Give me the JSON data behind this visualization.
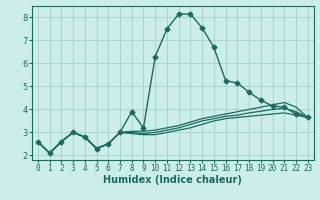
{
  "xlabel": "Humidex (Indice chaleur)",
  "ylabel": "",
  "bg_color": "#cceee8",
  "grid_color": "#aad4ce",
  "line_color": "#1a6b5a",
  "xlim": [
    -0.5,
    23.5
  ],
  "ylim": [
    1.8,
    8.5
  ],
  "xticks": [
    0,
    1,
    2,
    3,
    4,
    5,
    6,
    7,
    8,
    9,
    10,
    11,
    12,
    13,
    14,
    15,
    16,
    17,
    18,
    19,
    20,
    21,
    22,
    23
  ],
  "yticks": [
    2,
    3,
    4,
    5,
    6,
    7,
    8
  ],
  "lines": [
    {
      "x": [
        0,
        1,
        2,
        3,
        4,
        5,
        6,
        7,
        8,
        9,
        10,
        11,
        12,
        13,
        14,
        15,
        16,
        17,
        18,
        19,
        20,
        21,
        22,
        23
      ],
      "y": [
        2.6,
        2.1,
        2.6,
        3.0,
        2.8,
        2.3,
        2.5,
        3.0,
        3.9,
        3.2,
        6.3,
        7.5,
        8.15,
        8.15,
        7.55,
        6.7,
        5.25,
        5.15,
        4.75,
        4.4,
        4.15,
        4.1,
        3.8,
        3.65
      ],
      "style": "-",
      "marker": "D",
      "markersize": 2.5,
      "linewidth": 1.0
    },
    {
      "x": [
        0,
        1,
        2,
        3,
        4,
        5,
        6,
        7,
        8,
        9,
        10,
        11,
        12,
        13,
        14,
        15,
        16,
        17,
        18,
        19,
        20,
        21,
        22,
        23
      ],
      "y": [
        2.6,
        2.1,
        2.6,
        3.0,
        2.8,
        2.3,
        2.5,
        3.0,
        3.05,
        3.05,
        3.1,
        3.2,
        3.3,
        3.45,
        3.6,
        3.7,
        3.8,
        3.9,
        4.0,
        4.1,
        4.2,
        4.3,
        4.1,
        3.65
      ],
      "style": "-",
      "marker": null,
      "markersize": 0,
      "linewidth": 0.9
    },
    {
      "x": [
        0,
        1,
        2,
        3,
        4,
        5,
        6,
        7,
        8,
        9,
        10,
        11,
        12,
        13,
        14,
        15,
        16,
        17,
        18,
        19,
        20,
        21,
        22,
        23
      ],
      "y": [
        2.6,
        2.1,
        2.6,
        3.0,
        2.8,
        2.3,
        2.5,
        3.0,
        3.0,
        2.95,
        3.0,
        3.1,
        3.2,
        3.35,
        3.5,
        3.6,
        3.7,
        3.75,
        3.85,
        3.92,
        4.0,
        4.05,
        3.9,
        3.65
      ],
      "style": "-",
      "marker": null,
      "markersize": 0,
      "linewidth": 0.9
    },
    {
      "x": [
        0,
        1,
        2,
        3,
        4,
        5,
        6,
        7,
        8,
        9,
        10,
        11,
        12,
        13,
        14,
        15,
        16,
        17,
        18,
        19,
        20,
        21,
        22,
        23
      ],
      "y": [
        2.6,
        2.1,
        2.6,
        3.0,
        2.8,
        2.3,
        2.5,
        3.0,
        2.95,
        2.9,
        2.9,
        3.0,
        3.1,
        3.2,
        3.35,
        3.5,
        3.6,
        3.65,
        3.7,
        3.75,
        3.8,
        3.85,
        3.75,
        3.65
      ],
      "style": "-",
      "marker": null,
      "markersize": 0,
      "linewidth": 0.9
    }
  ]
}
